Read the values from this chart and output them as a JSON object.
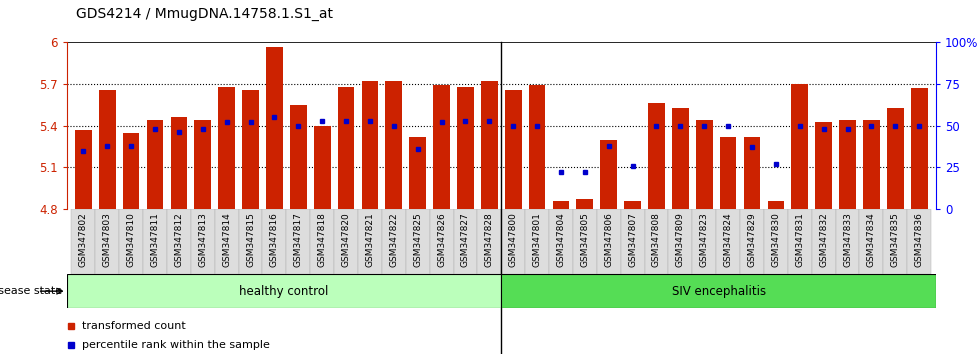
{
  "title": "GDS4214 / MmugDNA.14758.1.S1_at",
  "samples": [
    "GSM347802",
    "GSM347803",
    "GSM347810",
    "GSM347811",
    "GSM347812",
    "GSM347813",
    "GSM347814",
    "GSM347815",
    "GSM347816",
    "GSM347817",
    "GSM347818",
    "GSM347820",
    "GSM347821",
    "GSM347822",
    "GSM347825",
    "GSM347826",
    "GSM347827",
    "GSM347828",
    "GSM347800",
    "GSM347801",
    "GSM347804",
    "GSM347805",
    "GSM347806",
    "GSM347807",
    "GSM347808",
    "GSM347809",
    "GSM347823",
    "GSM347824",
    "GSM347829",
    "GSM347830",
    "GSM347831",
    "GSM347832",
    "GSM347833",
    "GSM347834",
    "GSM347835",
    "GSM347836"
  ],
  "bar_values": [
    5.37,
    5.66,
    5.35,
    5.44,
    5.46,
    5.44,
    5.68,
    5.66,
    5.97,
    5.55,
    5.4,
    5.68,
    5.72,
    5.72,
    5.32,
    5.69,
    5.68,
    5.72,
    5.66,
    5.69,
    4.86,
    4.87,
    5.3,
    4.86,
    5.56,
    5.53,
    5.44,
    5.32,
    5.32,
    4.86,
    5.7,
    5.43,
    5.44,
    5.44,
    5.53,
    5.67
  ],
  "percentile_values": [
    35,
    38,
    38,
    48,
    46,
    48,
    52,
    52,
    55,
    50,
    53,
    53,
    53,
    50,
    36,
    52,
    53,
    53,
    50,
    50,
    22,
    22,
    38,
    26,
    50,
    50,
    50,
    50,
    37,
    27,
    50,
    48,
    48,
    50,
    50,
    50
  ],
  "ylim_left": [
    4.8,
    6.0
  ],
  "yticks_left": [
    4.8,
    5.1,
    5.4,
    5.7,
    6.0
  ],
  "ytick_labels_left": [
    "4.8",
    "5.1",
    "5.4",
    "5.7",
    "6"
  ],
  "ylim_right": [
    0,
    100
  ],
  "yticks_right": [
    0,
    25,
    50,
    75,
    100
  ],
  "ytick_labels_right": [
    "0",
    "25",
    "50",
    "75",
    "100%"
  ],
  "bar_color": "#cc2200",
  "dot_color": "#0000cc",
  "group1_label": "healthy control",
  "group2_label": "SIV encephalitis",
  "group1_count": 18,
  "group2_count": 18,
  "group1_color": "#bbffbb",
  "group2_color": "#55dd55",
  "disease_state_label": "disease state",
  "legend_bar_label": "transformed count",
  "legend_dot_label": "percentile rank within the sample",
  "background_color": "#ffffff",
  "dotted_line_color": "#000000",
  "title_fontsize": 10,
  "tick_fontsize": 6.5,
  "bar_width": 0.7
}
